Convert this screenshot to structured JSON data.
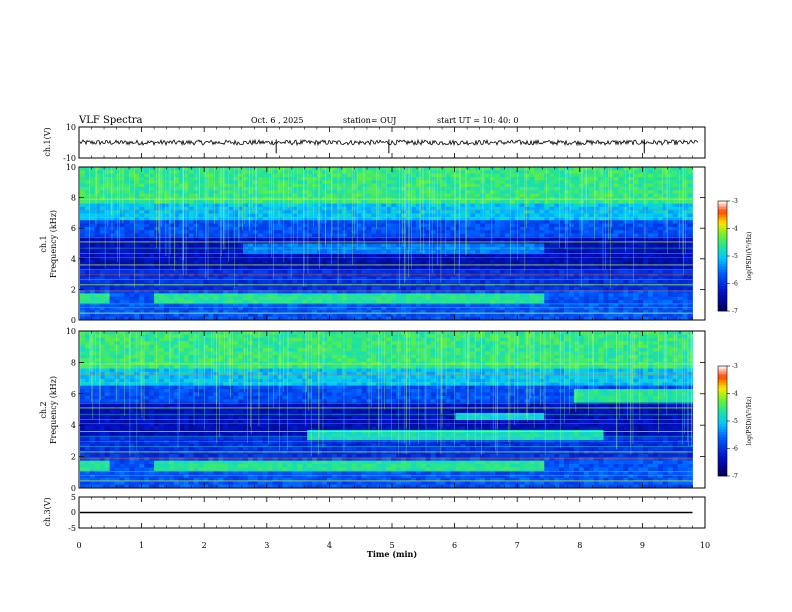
{
  "header": {
    "title": "VLF Spectra",
    "date": "Oct. 6 , 2025",
    "station": "station= OUJ",
    "start_ut": "start UT =  10: 40: 0"
  },
  "chart_data": [
    {
      "type": "line",
      "name": "ch1-waveform",
      "ylabel": "ch.1(V)",
      "ylim": [
        -10,
        10
      ],
      "yticks": [
        "10",
        "-10"
      ],
      "xlim": [
        0,
        10
      ],
      "baseline": 0,
      "note_spikes_min": [
        3.15,
        4.95,
        9.03
      ]
    },
    {
      "type": "heatmap",
      "name": "ch1-spectrogram",
      "ylabel_top": "ch.1",
      "ylabel": "Frequency (kHz)",
      "ylim": [
        0,
        10
      ],
      "yticks": [
        "0",
        "2",
        "4",
        "6",
        "8",
        "10"
      ],
      "xlim": [
        0,
        10
      ],
      "data_end_min": 9.8,
      "colorbar": {
        "label": "log(PSD)(V²/Hz)",
        "range": [
          -7,
          -3
        ],
        "ticks": [
          "-3",
          "-4",
          "-5",
          "-6",
          "-7"
        ]
      }
    },
    {
      "type": "heatmap",
      "name": "ch2-spectrogram",
      "ylabel_top": "ch.2",
      "ylabel": "Frequency (kHz)",
      "ylim": [
        0,
        10
      ],
      "yticks": [
        "0",
        "2",
        "4",
        "6",
        "8",
        "10"
      ],
      "xlim": [
        0,
        10
      ],
      "data_end_min": 9.8,
      "colorbar": {
        "label": "log(PSD)(V²/Hz)",
        "range": [
          -7,
          -3
        ],
        "ticks": [
          "-3",
          "-4",
          "-5",
          "-6",
          "-7"
        ]
      }
    },
    {
      "type": "line",
      "name": "ch3-waveform",
      "ylabel": "ch.3(V)",
      "ylim": [
        -5,
        5
      ],
      "yticks": [
        "5",
        "0",
        "-5"
      ],
      "xlim": [
        0,
        10
      ],
      "baseline": 0
    }
  ],
  "xaxis": {
    "label": "Time (min)",
    "ticks": [
      "0",
      "1",
      "2",
      "3",
      "4",
      "5",
      "6",
      "7",
      "8",
      "9",
      "10"
    ]
  }
}
